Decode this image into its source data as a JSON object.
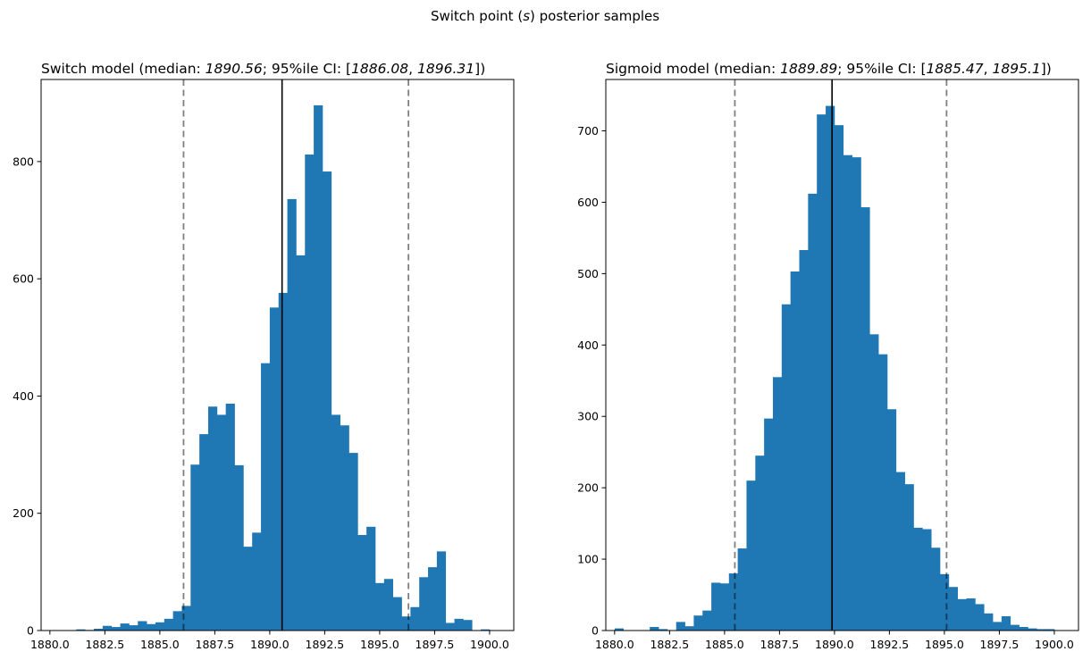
{
  "figure": {
    "suptitle": "Switch point (s) posterior samples",
    "suptitle_parts": [
      "Switch point (",
      "s",
      ") posterior samples"
    ]
  },
  "chart_data": [
    {
      "type": "bar",
      "title": "Switch model (median: 1890.56; 95%ile CI: [1886.08, 1896.31])",
      "title_parts": [
        "Switch model (median: ",
        "1890.56",
        "; 95%ile CI: [",
        "1886.08",
        ", ",
        "1896.31",
        "])"
      ],
      "xlim": [
        1879.6,
        1901.1
      ],
      "ylim": [
        0,
        940
      ],
      "bin_start": 1880.0,
      "bin_width": 0.4,
      "values": [
        0,
        0,
        0,
        2,
        1,
        3,
        8,
        6,
        12,
        9,
        16,
        11,
        14,
        20,
        33,
        42,
        283,
        335,
        382,
        368,
        387,
        282,
        143,
        167,
        456,
        551,
        576,
        736,
        640,
        812,
        896,
        783,
        368,
        350,
        303,
        163,
        177,
        81,
        88,
        57,
        24,
        40,
        91,
        108,
        135,
        13,
        20,
        18,
        0,
        2,
        0,
        0
      ],
      "median": 1890.56,
      "ci": [
        1886.08,
        1896.31
      ],
      "x_ticks": [
        1880,
        1882.5,
        1885,
        1887.5,
        1890,
        1892.5,
        1895,
        1897.5,
        1900
      ],
      "x_tick_labels": [
        "1880.0",
        "1882.5",
        "1885.0",
        "1887.5",
        "1890.0",
        "1892.5",
        "1895.0",
        "1897.5",
        "1900.0"
      ],
      "y_ticks": [
        0,
        200,
        400,
        600,
        800
      ],
      "y_tick_labels": [
        "0",
        "200",
        "400",
        "600",
        "800"
      ],
      "bar_color": "#1f77b4",
      "median_color": "#000000",
      "ci_color": "#808080"
    },
    {
      "type": "bar",
      "title": "Sigmoid model (median: 1889.89; 95%ile CI: [1885.47, 1895.1])",
      "title_parts": [
        "Sigmoid model (median: ",
        "1889.89",
        "; 95%ile CI: [",
        "1885.47",
        ", ",
        "1895.1",
        "])"
      ],
      "xlim": [
        1879.6,
        1901.1
      ],
      "ylim": [
        0,
        772
      ],
      "bin_start": 1880.0,
      "bin_width": 0.4,
      "values": [
        3,
        0,
        0,
        0,
        5,
        2,
        0,
        12,
        6,
        21,
        28,
        67,
        66,
        80,
        115,
        210,
        245,
        297,
        355,
        457,
        503,
        533,
        612,
        723,
        735,
        708,
        666,
        663,
        593,
        415,
        387,
        310,
        222,
        205,
        144,
        142,
        116,
        79,
        61,
        44,
        45,
        37,
        24,
        12,
        20,
        8,
        5,
        3,
        2,
        2,
        0,
        0
      ],
      "median": 1889.89,
      "ci": [
        1885.47,
        1895.1
      ],
      "x_ticks": [
        1880,
        1882.5,
        1885,
        1887.5,
        1890,
        1892.5,
        1895,
        1897.5,
        1900
      ],
      "x_tick_labels": [
        "1880.0",
        "1882.5",
        "1885.0",
        "1887.5",
        "1890.0",
        "1892.5",
        "1895.0",
        "1897.5",
        "1900.0"
      ],
      "y_ticks": [
        0,
        100,
        200,
        300,
        400,
        500,
        600,
        700
      ],
      "y_tick_labels": [
        "0",
        "100",
        "200",
        "300",
        "400",
        "500",
        "600",
        "700"
      ],
      "bar_color": "#1f77b4",
      "median_color": "#000000",
      "ci_color": "#808080"
    }
  ]
}
